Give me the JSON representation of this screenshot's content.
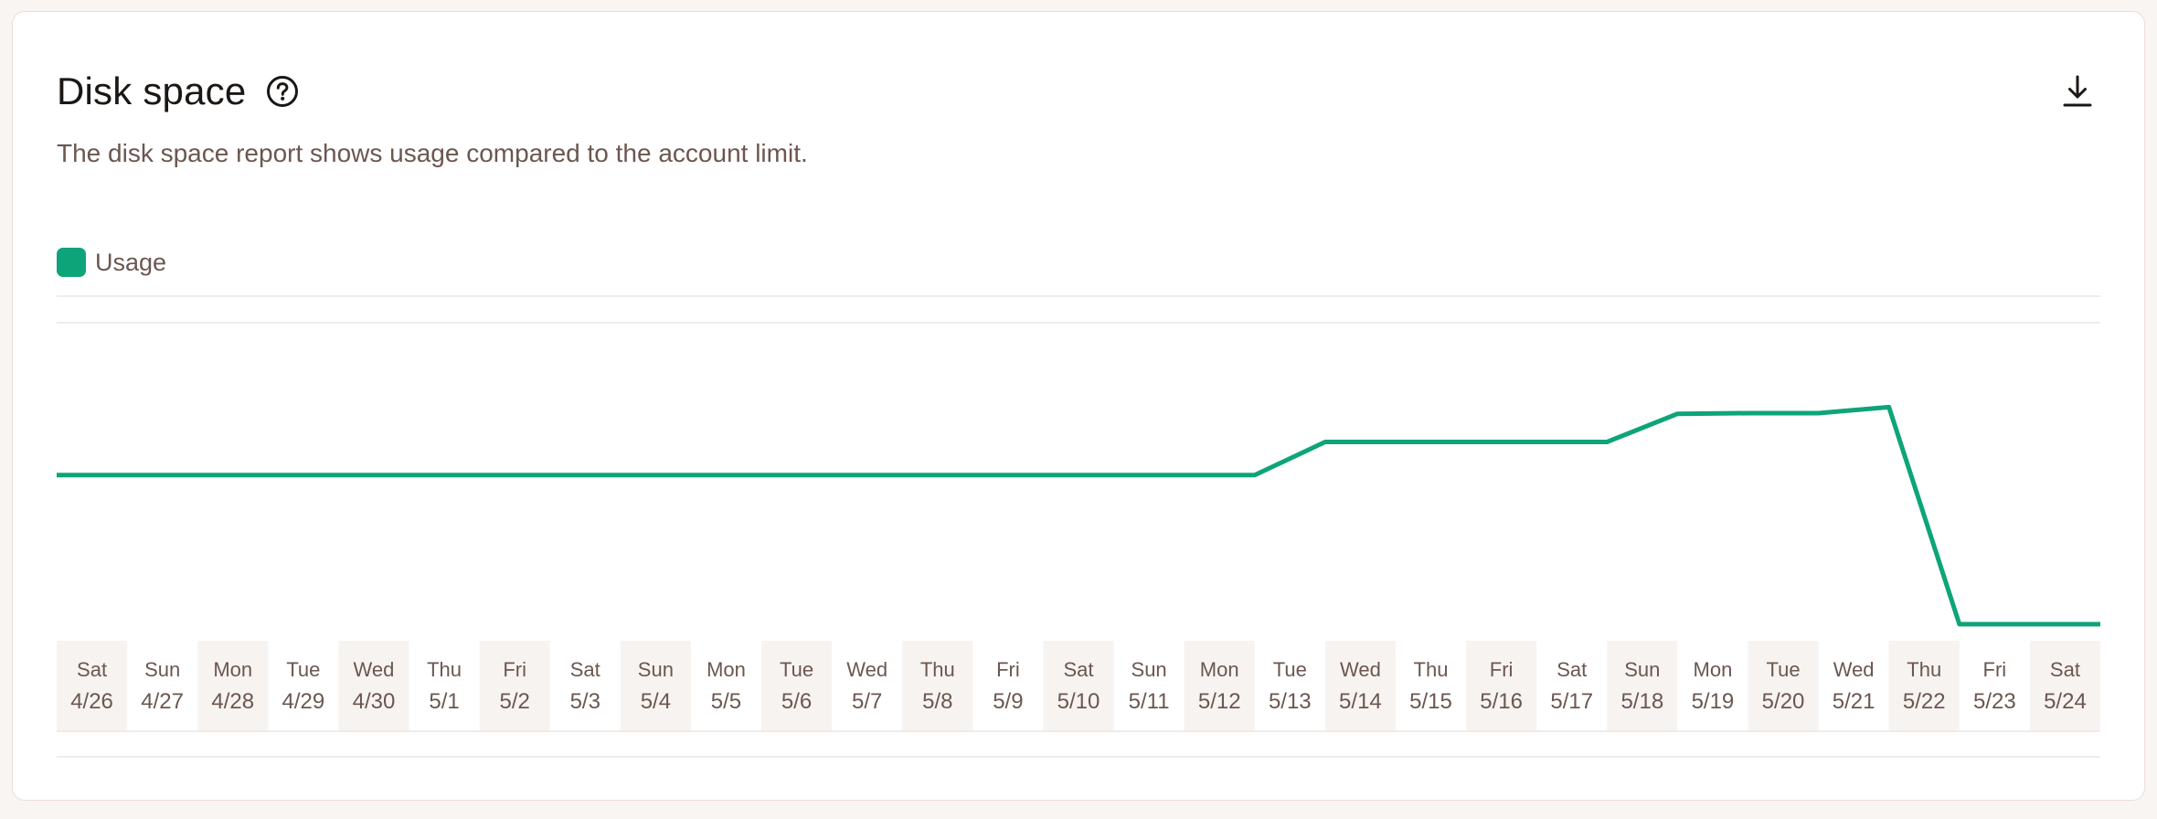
{
  "header": {
    "title": "Disk space",
    "subtitle": "The disk space report shows usage compared to the account limit.",
    "help_icon": "question-circle-icon",
    "download_icon": "download-icon"
  },
  "colors": {
    "series": "#0ea47a",
    "text_muted": "#6b5750",
    "band": "#f7f3f1",
    "grid": "#ebe5e2"
  },
  "chart_data": {
    "type": "line",
    "title": "Disk space",
    "legend": {
      "entries": [
        "Usage"
      ],
      "placement": "top-left"
    },
    "grid": true,
    "categories": [
      {
        "day": "Sat",
        "date": "4/26"
      },
      {
        "day": "Sun",
        "date": "4/27"
      },
      {
        "day": "Mon",
        "date": "4/28"
      },
      {
        "day": "Tue",
        "date": "4/29"
      },
      {
        "day": "Wed",
        "date": "4/30"
      },
      {
        "day": "Thu",
        "date": "5/1"
      },
      {
        "day": "Fri",
        "date": "5/2"
      },
      {
        "day": "Sat",
        "date": "5/3"
      },
      {
        "day": "Sun",
        "date": "5/4"
      },
      {
        "day": "Mon",
        "date": "5/5"
      },
      {
        "day": "Tue",
        "date": "5/6"
      },
      {
        "day": "Wed",
        "date": "5/7"
      },
      {
        "day": "Thu",
        "date": "5/8"
      },
      {
        "day": "Fri",
        "date": "5/9"
      },
      {
        "day": "Sat",
        "date": "5/10"
      },
      {
        "day": "Sun",
        "date": "5/11"
      },
      {
        "day": "Mon",
        "date": "5/12"
      },
      {
        "day": "Tue",
        "date": "5/13"
      },
      {
        "day": "Wed",
        "date": "5/14"
      },
      {
        "day": "Thu",
        "date": "5/15"
      },
      {
        "day": "Fri",
        "date": "5/16"
      },
      {
        "day": "Sat",
        "date": "5/17"
      },
      {
        "day": "Sun",
        "date": "5/18"
      },
      {
        "day": "Mon",
        "date": "5/19"
      },
      {
        "day": "Tue",
        "date": "5/20"
      },
      {
        "day": "Wed",
        "date": "5/21"
      },
      {
        "day": "Thu",
        "date": "5/22"
      },
      {
        "day": "Fri",
        "date": "5/23"
      },
      {
        "day": "Sat",
        "date": "5/24"
      }
    ],
    "series": [
      {
        "name": "Usage",
        "color": "#0ea47a",
        "values": [
          50,
          50,
          50,
          50,
          50,
          50,
          50,
          50,
          50,
          50,
          50,
          50,
          50,
          50,
          50,
          50,
          50,
          50,
          60,
          60,
          60,
          60,
          60,
          68.5,
          68.7,
          68.7,
          70.5,
          5,
          5
        ]
      }
    ],
    "ylim": [
      0,
      96
    ]
  }
}
